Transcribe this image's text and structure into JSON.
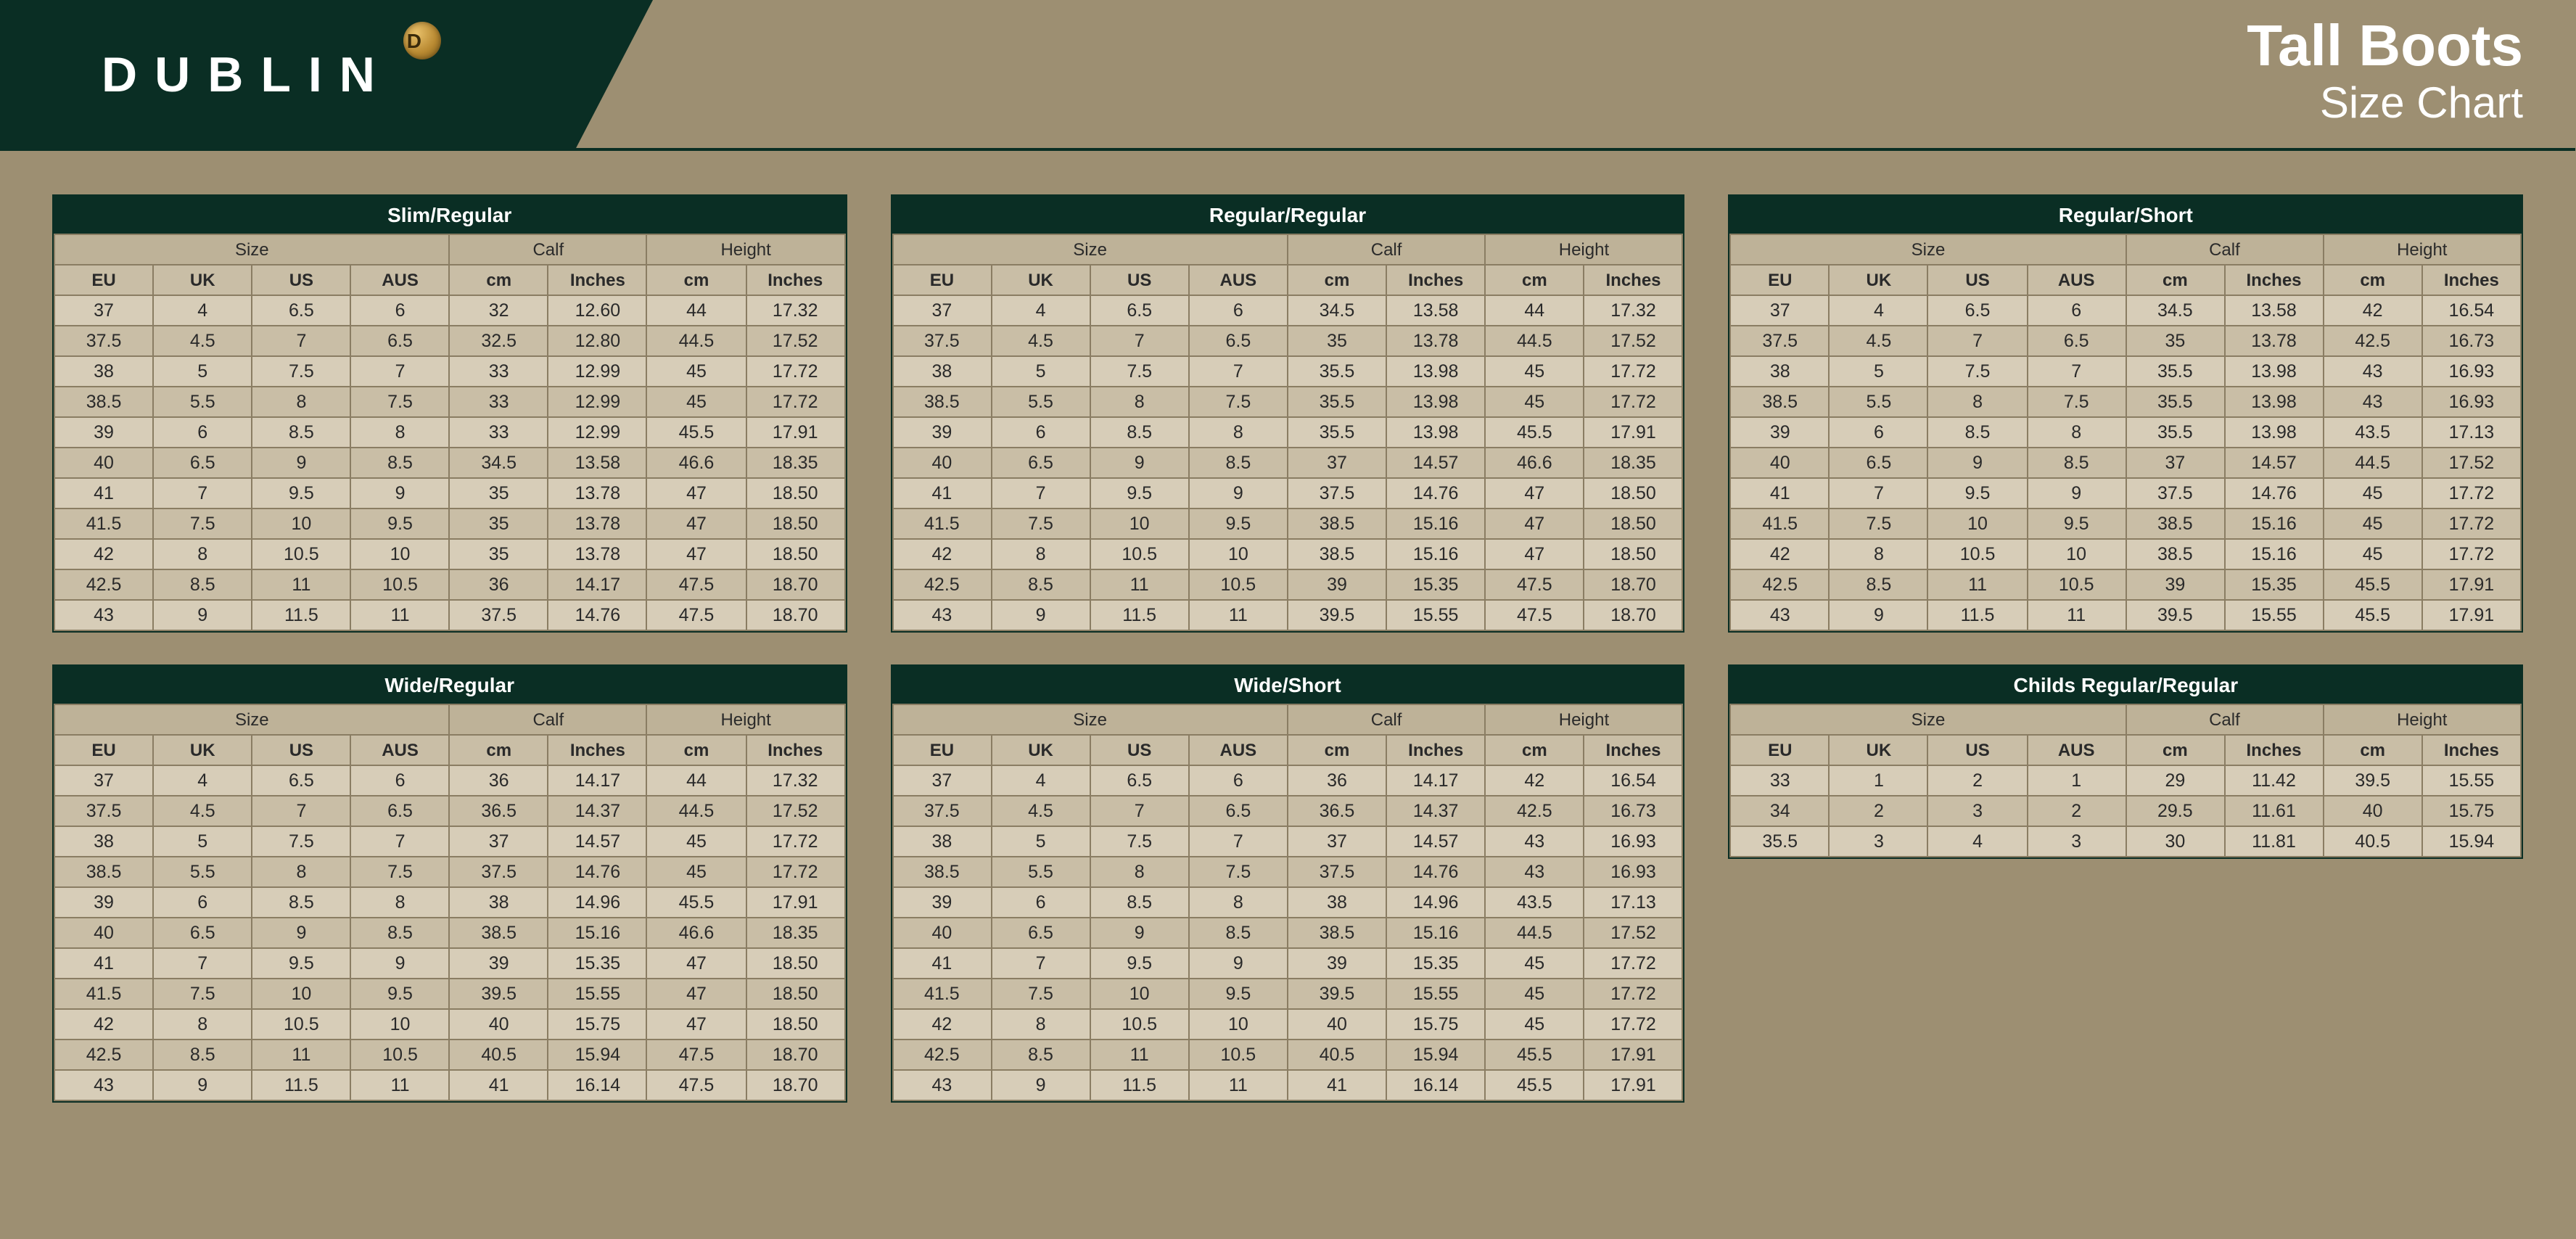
{
  "brand": "DUBLIN",
  "coin_letter": "D",
  "header": {
    "title": "Tall Boots",
    "subtitle": "Size Chart"
  },
  "group_labels": {
    "size": "Size",
    "calf": "Calf",
    "height": "Height"
  },
  "column_labels": {
    "eu": "EU",
    "uk": "UK",
    "us": "US",
    "aus": "AUS",
    "cm": "cm",
    "inches": "Inches"
  },
  "colors": {
    "page_bg": "#9d8f72",
    "dark": "#0a2e24",
    "row_odd": "#d7cdb8",
    "row_even": "#c9bea6",
    "group_row": "#beb298",
    "border": "#8a7d63",
    "coin_light": "#e8c06a",
    "coin_mid": "#b98a32",
    "coin_dark": "#7a5818"
  },
  "tables": [
    {
      "title": "Slim/Regular",
      "rows": [
        [
          "37",
          "4",
          "6.5",
          "6",
          "32",
          "12.60",
          "44",
          "17.32"
        ],
        [
          "37.5",
          "4.5",
          "7",
          "6.5",
          "32.5",
          "12.80",
          "44.5",
          "17.52"
        ],
        [
          "38",
          "5",
          "7.5",
          "7",
          "33",
          "12.99",
          "45",
          "17.72"
        ],
        [
          "38.5",
          "5.5",
          "8",
          "7.5",
          "33",
          "12.99",
          "45",
          "17.72"
        ],
        [
          "39",
          "6",
          "8.5",
          "8",
          "33",
          "12.99",
          "45.5",
          "17.91"
        ],
        [
          "40",
          "6.5",
          "9",
          "8.5",
          "34.5",
          "13.58",
          "46.6",
          "18.35"
        ],
        [
          "41",
          "7",
          "9.5",
          "9",
          "35",
          "13.78",
          "47",
          "18.50"
        ],
        [
          "41.5",
          "7.5",
          "10",
          "9.5",
          "35",
          "13.78",
          "47",
          "18.50"
        ],
        [
          "42",
          "8",
          "10.5",
          "10",
          "35",
          "13.78",
          "47",
          "18.50"
        ],
        [
          "42.5",
          "8.5",
          "11",
          "10.5",
          "36",
          "14.17",
          "47.5",
          "18.70"
        ],
        [
          "43",
          "9",
          "11.5",
          "11",
          "37.5",
          "14.76",
          "47.5",
          "18.70"
        ]
      ]
    },
    {
      "title": "Regular/Regular",
      "rows": [
        [
          "37",
          "4",
          "6.5",
          "6",
          "34.5",
          "13.58",
          "44",
          "17.32"
        ],
        [
          "37.5",
          "4.5",
          "7",
          "6.5",
          "35",
          "13.78",
          "44.5",
          "17.52"
        ],
        [
          "38",
          "5",
          "7.5",
          "7",
          "35.5",
          "13.98",
          "45",
          "17.72"
        ],
        [
          "38.5",
          "5.5",
          "8",
          "7.5",
          "35.5",
          "13.98",
          "45",
          "17.72"
        ],
        [
          "39",
          "6",
          "8.5",
          "8",
          "35.5",
          "13.98",
          "45.5",
          "17.91"
        ],
        [
          "40",
          "6.5",
          "9",
          "8.5",
          "37",
          "14.57",
          "46.6",
          "18.35"
        ],
        [
          "41",
          "7",
          "9.5",
          "9",
          "37.5",
          "14.76",
          "47",
          "18.50"
        ],
        [
          "41.5",
          "7.5",
          "10",
          "9.5",
          "38.5",
          "15.16",
          "47",
          "18.50"
        ],
        [
          "42",
          "8",
          "10.5",
          "10",
          "38.5",
          "15.16",
          "47",
          "18.50"
        ],
        [
          "42.5",
          "8.5",
          "11",
          "10.5",
          "39",
          "15.35",
          "47.5",
          "18.70"
        ],
        [
          "43",
          "9",
          "11.5",
          "11",
          "39.5",
          "15.55",
          "47.5",
          "18.70"
        ]
      ]
    },
    {
      "title": "Regular/Short",
      "rows": [
        [
          "37",
          "4",
          "6.5",
          "6",
          "34.5",
          "13.58",
          "42",
          "16.54"
        ],
        [
          "37.5",
          "4.5",
          "7",
          "6.5",
          "35",
          "13.78",
          "42.5",
          "16.73"
        ],
        [
          "38",
          "5",
          "7.5",
          "7",
          "35.5",
          "13.98",
          "43",
          "16.93"
        ],
        [
          "38.5",
          "5.5",
          "8",
          "7.5",
          "35.5",
          "13.98",
          "43",
          "16.93"
        ],
        [
          "39",
          "6",
          "8.5",
          "8",
          "35.5",
          "13.98",
          "43.5",
          "17.13"
        ],
        [
          "40",
          "6.5",
          "9",
          "8.5",
          "37",
          "14.57",
          "44.5",
          "17.52"
        ],
        [
          "41",
          "7",
          "9.5",
          "9",
          "37.5",
          "14.76",
          "45",
          "17.72"
        ],
        [
          "41.5",
          "7.5",
          "10",
          "9.5",
          "38.5",
          "15.16",
          "45",
          "17.72"
        ],
        [
          "42",
          "8",
          "10.5",
          "10",
          "38.5",
          "15.16",
          "45",
          "17.72"
        ],
        [
          "42.5",
          "8.5",
          "11",
          "10.5",
          "39",
          "15.35",
          "45.5",
          "17.91"
        ],
        [
          "43",
          "9",
          "11.5",
          "11",
          "39.5",
          "15.55",
          "45.5",
          "17.91"
        ]
      ]
    },
    {
      "title": "Wide/Regular",
      "rows": [
        [
          "37",
          "4",
          "6.5",
          "6",
          "36",
          "14.17",
          "44",
          "17.32"
        ],
        [
          "37.5",
          "4.5",
          "7",
          "6.5",
          "36.5",
          "14.37",
          "44.5",
          "17.52"
        ],
        [
          "38",
          "5",
          "7.5",
          "7",
          "37",
          "14.57",
          "45",
          "17.72"
        ],
        [
          "38.5",
          "5.5",
          "8",
          "7.5",
          "37.5",
          "14.76",
          "45",
          "17.72"
        ],
        [
          "39",
          "6",
          "8.5",
          "8",
          "38",
          "14.96",
          "45.5",
          "17.91"
        ],
        [
          "40",
          "6.5",
          "9",
          "8.5",
          "38.5",
          "15.16",
          "46.6",
          "18.35"
        ],
        [
          "41",
          "7",
          "9.5",
          "9",
          "39",
          "15.35",
          "47",
          "18.50"
        ],
        [
          "41.5",
          "7.5",
          "10",
          "9.5",
          "39.5",
          "15.55",
          "47",
          "18.50"
        ],
        [
          "42",
          "8",
          "10.5",
          "10",
          "40",
          "15.75",
          "47",
          "18.50"
        ],
        [
          "42.5",
          "8.5",
          "11",
          "10.5",
          "40.5",
          "15.94",
          "47.5",
          "18.70"
        ],
        [
          "43",
          "9",
          "11.5",
          "11",
          "41",
          "16.14",
          "47.5",
          "18.70"
        ]
      ]
    },
    {
      "title": "Wide/Short",
      "rows": [
        [
          "37",
          "4",
          "6.5",
          "6",
          "36",
          "14.17",
          "42",
          "16.54"
        ],
        [
          "37.5",
          "4.5",
          "7",
          "6.5",
          "36.5",
          "14.37",
          "42.5",
          "16.73"
        ],
        [
          "38",
          "5",
          "7.5",
          "7",
          "37",
          "14.57",
          "43",
          "16.93"
        ],
        [
          "38.5",
          "5.5",
          "8",
          "7.5",
          "37.5",
          "14.76",
          "43",
          "16.93"
        ],
        [
          "39",
          "6",
          "8.5",
          "8",
          "38",
          "14.96",
          "43.5",
          "17.13"
        ],
        [
          "40",
          "6.5",
          "9",
          "8.5",
          "38.5",
          "15.16",
          "44.5",
          "17.52"
        ],
        [
          "41",
          "7",
          "9.5",
          "9",
          "39",
          "15.35",
          "45",
          "17.72"
        ],
        [
          "41.5",
          "7.5",
          "10",
          "9.5",
          "39.5",
          "15.55",
          "45",
          "17.72"
        ],
        [
          "42",
          "8",
          "10.5",
          "10",
          "40",
          "15.75",
          "45",
          "17.72"
        ],
        [
          "42.5",
          "8.5",
          "11",
          "10.5",
          "40.5",
          "15.94",
          "45.5",
          "17.91"
        ],
        [
          "43",
          "9",
          "11.5",
          "11",
          "41",
          "16.14",
          "45.5",
          "17.91"
        ]
      ]
    },
    {
      "title": "Childs Regular/Regular",
      "rows": [
        [
          "33",
          "1",
          "2",
          "1",
          "29",
          "11.42",
          "39.5",
          "15.55"
        ],
        [
          "34",
          "2",
          "3",
          "2",
          "29.5",
          "11.61",
          "40",
          "15.75"
        ],
        [
          "35.5",
          "3",
          "4",
          "3",
          "30",
          "11.81",
          "40.5",
          "15.94"
        ]
      ]
    }
  ]
}
